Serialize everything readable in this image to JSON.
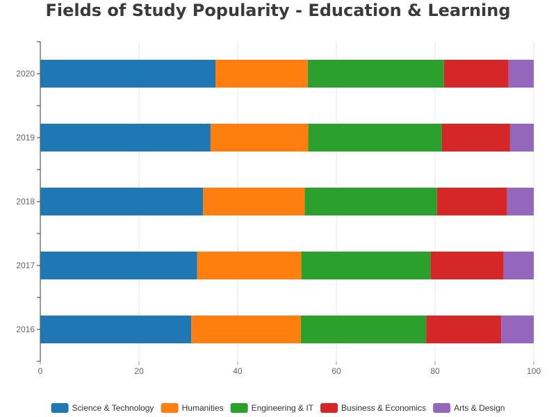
{
  "chart_data": {
    "type": "bar",
    "orientation": "horizontal",
    "stacked": true,
    "title": "Fields of Study Popularity - Education & Learning",
    "categories": [
      "2016",
      "2017",
      "2018",
      "2019",
      "2020"
    ],
    "series": [
      {
        "name": "Science & Technology",
        "color": "#1f77b4",
        "values": [
          30.6,
          31.8,
          33.0,
          34.5,
          35.5
        ]
      },
      {
        "name": "Humanities",
        "color": "#ff7f0e",
        "values": [
          22.2,
          21.1,
          20.6,
          19.8,
          18.7
        ]
      },
      {
        "name": "Engineering & IT",
        "color": "#2ca02c",
        "values": [
          25.4,
          26.2,
          26.8,
          27.1,
          27.6
        ]
      },
      {
        "name": "Business & Economics",
        "color": "#d62728",
        "values": [
          15.2,
          14.8,
          14.2,
          13.8,
          13.1
        ]
      },
      {
        "name": "Arts & Design",
        "color": "#9467bd",
        "values": [
          6.6,
          6.1,
          5.4,
          4.8,
          5.1
        ]
      }
    ],
    "xlim": [
      0,
      100
    ],
    "xticks": [
      "0",
      "20",
      "40",
      "60",
      "80",
      "100"
    ],
    "grid": true,
    "legend_position": "bottom"
  }
}
